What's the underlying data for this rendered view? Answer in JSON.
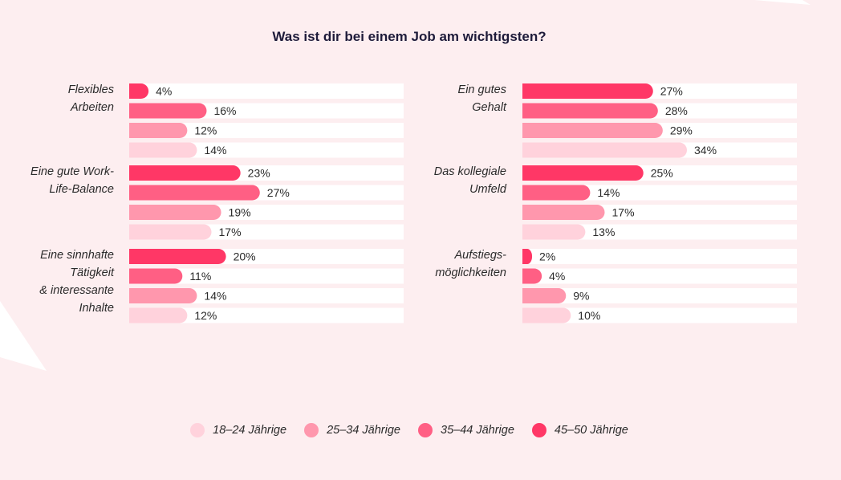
{
  "title": "Was ist dir bei einem Job am wichtigsten?",
  "chart_data": {
    "type": "bar",
    "orientation": "horizontal",
    "title": "Was ist dir bei einem Job am wichtigsten?",
    "unit": "%",
    "xlim": [
      0,
      34
    ],
    "grid": false,
    "legend_position": "bottom",
    "series": [
      {
        "name": "45–50 Jährige",
        "color": "#ff3766"
      },
      {
        "name": "35–44 Jährige",
        "color": "#ff5f84"
      },
      {
        "name": "25–34 Jährige",
        "color": "#ff97ad"
      },
      {
        "name": "18–24 Jährige",
        "color": "#ffd2dc"
      }
    ],
    "groups": [
      {
        "label_lines": [
          "Flexibles",
          "Arbeiten"
        ],
        "values": [
          4,
          16,
          12,
          14
        ]
      },
      {
        "label_lines": [
          "Eine gute Work-",
          "Life-Balance"
        ],
        "values": [
          23,
          27,
          19,
          17
        ]
      },
      {
        "label_lines": [
          "Eine sinnhafte",
          "Tätigkeit",
          "& interessante",
          "Inhalte"
        ],
        "values": [
          20,
          11,
          14,
          12
        ]
      },
      {
        "label_lines": [
          "Ein gutes",
          "Gehalt"
        ],
        "values": [
          27,
          28,
          29,
          34
        ]
      },
      {
        "label_lines": [
          "Das kollegiale",
          "Umfeld"
        ],
        "values": [
          25,
          14,
          17,
          13
        ]
      },
      {
        "label_lines": [
          "Aufstiegs-",
          "möglichkeiten"
        ],
        "values": [
          2,
          4,
          9,
          10
        ]
      }
    ]
  },
  "legend": [
    {
      "label": "18–24 Jährige",
      "color": "#ffd2dc"
    },
    {
      "label": "25–34 Jährige",
      "color": "#ff97ad"
    },
    {
      "label": "35–44 Jährige",
      "color": "#ff5f84"
    },
    {
      "label": "45–50 Jährige",
      "color": "#ff3766"
    }
  ]
}
